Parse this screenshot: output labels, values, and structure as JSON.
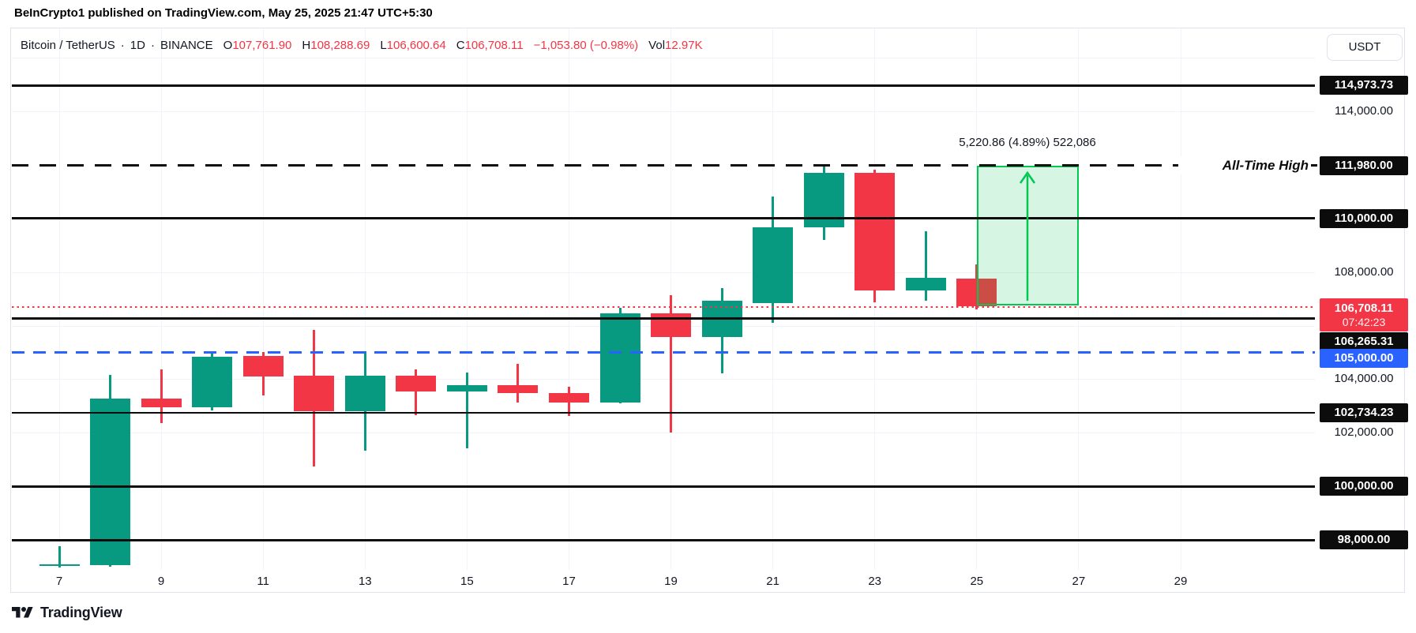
{
  "header": {
    "attribution": "BeInCrypto1 published on TradingView.com, May 25, 2025 21:47 UTC+5:30"
  },
  "toolbar": {
    "symbol": "Bitcoin / TetherUS",
    "separator": "·",
    "interval": "1D",
    "exchange": "BINANCE",
    "ohlc": [
      {
        "label": "O",
        "value": "107,761.90"
      },
      {
        "label": "H",
        "value": "108,288.69"
      },
      {
        "label": "L",
        "value": "106,600.64"
      },
      {
        "label": "C",
        "value": "106,708.11"
      }
    ],
    "change": "−1,053.80 (−0.98%)",
    "volume": {
      "label": "Vol",
      "value": "12.97K"
    },
    "currency_button": "USDT"
  },
  "footer": {
    "brand": "TradingView"
  },
  "colors": {
    "up": "#089981",
    "down": "#F23645",
    "badge_black": "#0C0C0C",
    "badge_blue": "#2962FF",
    "badge_red": "#F23645",
    "projection_green": "#00C853",
    "text": "#131722",
    "grid": "#F0F3FA",
    "border": "#E0E3EB"
  },
  "chart_data": {
    "type": "candlestick",
    "title": "Bitcoin / TetherUS · 1D · BINANCE",
    "x_unit": "day of May 2025",
    "x_ticks": [
      "7",
      "9",
      "11",
      "13",
      "15",
      "17",
      "19",
      "21",
      "23",
      "25",
      "27",
      "29"
    ],
    "ylim": [
      96900,
      117000
    ],
    "grid_prices": [
      116000,
      114000,
      108000,
      106000,
      104000,
      102000
    ],
    "plain_price_ticks": [
      {
        "price": 114000,
        "label": "114,000.00"
      },
      {
        "price": 108000,
        "label": "108,000.00"
      },
      {
        "price": 104000,
        "label": "104,000.00"
      },
      {
        "price": 102000,
        "label": "102,000.00"
      }
    ],
    "candles": [
      {
        "day": 7,
        "open": 97040,
        "high": 97770,
        "low": 96980,
        "close": 97075
      },
      {
        "day": 8,
        "open": 97050,
        "high": 104160,
        "low": 96990,
        "close": 103270
      },
      {
        "day": 9,
        "open": 103270,
        "high": 104370,
        "low": 102360,
        "close": 102960
      },
      {
        "day": 10,
        "open": 102960,
        "high": 105000,
        "low": 102830,
        "close": 104840
      },
      {
        "day": 11,
        "open": 104860,
        "high": 105000,
        "low": 103390,
        "close": 104100
      },
      {
        "day": 12,
        "open": 104130,
        "high": 105840,
        "low": 100740,
        "close": 102800
      },
      {
        "day": 13,
        "open": 102800,
        "high": 105050,
        "low": 101330,
        "close": 104130
      },
      {
        "day": 14,
        "open": 104130,
        "high": 104370,
        "low": 102660,
        "close": 103540
      },
      {
        "day": 15,
        "open": 103540,
        "high": 104240,
        "low": 101420,
        "close": 103775
      },
      {
        "day": 16,
        "open": 103775,
        "high": 104570,
        "low": 103130,
        "close": 103480
      },
      {
        "day": 17,
        "open": 103480,
        "high": 103715,
        "low": 102630,
        "close": 103130
      },
      {
        "day": 18,
        "open": 103130,
        "high": 106660,
        "low": 103100,
        "close": 106460
      },
      {
        "day": 19,
        "open": 106460,
        "high": 107135,
        "low": 102010,
        "close": 105570
      },
      {
        "day": 20,
        "open": 105570,
        "high": 107405,
        "low": 104215,
        "close": 106930
      },
      {
        "day": 21,
        "open": 106850,
        "high": 110820,
        "low": 106100,
        "close": 109670
      },
      {
        "day": 22,
        "open": 109670,
        "high": 111980,
        "low": 109200,
        "close": 111700
      },
      {
        "day": 23,
        "open": 111700,
        "high": 111830,
        "low": 106870,
        "close": 107310
      },
      {
        "day": 24,
        "open": 107310,
        "high": 109520,
        "low": 106930,
        "close": 107780
      },
      {
        "day": 25,
        "open": 107761.9,
        "high": 108288.69,
        "low": 106600.64,
        "close": 106708.11
      }
    ],
    "levels": [
      {
        "price": 114973.73,
        "label": "114,973.73",
        "line": "solid",
        "badge": "black"
      },
      {
        "price": 111980.0,
        "label": "111,980.00",
        "line": "dashed",
        "badge": "black"
      },
      {
        "price": 110000.0,
        "label": "110,000.00",
        "line": "solid",
        "badge": "black"
      },
      {
        "price": 106265.31,
        "label": "106,265.31",
        "line": "solid",
        "badge": "black",
        "badge_dy": 29
      },
      {
        "price": 105000.0,
        "label": "105,000.00",
        "line": "dashed-blue",
        "badge": "blue",
        "badge_dy": 8
      },
      {
        "price": 102734.23,
        "label": "102,734.23",
        "line": "solid-thin",
        "badge": "black"
      },
      {
        "price": 100000.0,
        "label": "100,000.00",
        "line": "solid",
        "badge": "black"
      },
      {
        "price": 98000.0,
        "label": "98,000.00",
        "line": "solid",
        "badge": "black"
      }
    ],
    "last_price": {
      "price": 106708.11,
      "label": "106,708.11",
      "countdown": "07:42:23",
      "direction": "down"
    },
    "ath_label": "All-Time High",
    "projection": {
      "from_day": 25,
      "to_day": 27,
      "arrow_day": 26,
      "from_price": 106759.14,
      "to_price": 111980.0,
      "label": "5,220.86 (4.89%) 522,086"
    },
    "legend_position": "top-left",
    "grid": true
  }
}
